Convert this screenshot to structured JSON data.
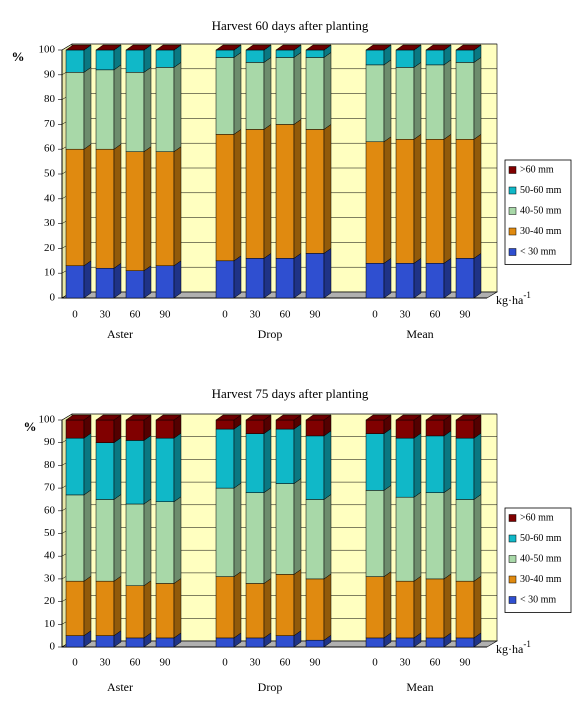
{
  "chart_data": [
    {
      "type": "bar",
      "stacked": true,
      "title": "Harvest 60 days after planting",
      "y_label": "%",
      "x_label": {
        "text": "kg·ha",
        "superscript": "-1"
      },
      "groups": [
        "Aster",
        "Drop",
        "Mean"
      ],
      "categories": [
        "0",
        "30",
        "60",
        "90",
        "0",
        "30",
        "60",
        "90",
        "0",
        "30",
        "60",
        "90"
      ],
      "ylim": [
        0,
        100
      ],
      "yticks": [
        0,
        10,
        20,
        30,
        40,
        50,
        60,
        70,
        80,
        90,
        100
      ],
      "grid": true,
      "legend": "right",
      "series": [
        {
          "name": "< 30 mm",
          "color": "#2f4fd0",
          "values": [
            13,
            12,
            11,
            13,
            15,
            16,
            16,
            18,
            14,
            14,
            14,
            16
          ]
        },
        {
          "name": "30-40 mm",
          "color": "#e08a10",
          "values": [
            47,
            48,
            48,
            46,
            51,
            52,
            54,
            50,
            49,
            50,
            50,
            48
          ]
        },
        {
          "name": "40-50 mm",
          "color": "#a8d8a8",
          "values": [
            31,
            32,
            32,
            34,
            31,
            27,
            27,
            29,
            31,
            29,
            30,
            31
          ]
        },
        {
          "name": "50-60 mm",
          "color": "#10b8c8",
          "values": [
            9,
            8,
            9,
            7,
            3,
            5,
            3,
            3,
            6,
            7,
            6,
            5
          ]
        },
        {
          "name": ">60 mm",
          "color": "#800000",
          "values": [
            0,
            0,
            0,
            0,
            0,
            0,
            0,
            0,
            0,
            0,
            0,
            0
          ]
        }
      ]
    },
    {
      "type": "bar",
      "stacked": true,
      "title": "Harvest 75 days after planting",
      "y_label": "%",
      "x_label": {
        "text": "kg·ha",
        "superscript": "-1"
      },
      "groups": [
        "Aster",
        "Drop",
        "Mean"
      ],
      "categories": [
        "0",
        "30",
        "60",
        "90",
        "0",
        "30",
        "60",
        "90",
        "0",
        "30",
        "60",
        "90"
      ],
      "ylim": [
        0,
        100
      ],
      "yticks": [
        0,
        10,
        20,
        30,
        40,
        50,
        60,
        70,
        80,
        90,
        100
      ],
      "grid": true,
      "legend": "right",
      "series": [
        {
          "name": "< 30 mm",
          "color": "#2f4fd0",
          "values": [
            5,
            5,
            4,
            4,
            4,
            4,
            5,
            3,
            4,
            4,
            4,
            4
          ]
        },
        {
          "name": "30-40 mm",
          "color": "#e08a10",
          "values": [
            24,
            24,
            23,
            24,
            27,
            24,
            27,
            27,
            27,
            25,
            26,
            25
          ]
        },
        {
          "name": "40-50 mm",
          "color": "#a8d8a8",
          "values": [
            38,
            36,
            36,
            36,
            39,
            40,
            40,
            35,
            38,
            37,
            38,
            36
          ]
        },
        {
          "name": "50-60 mm",
          "color": "#10b8c8",
          "values": [
            25,
            25,
            28,
            28,
            26,
            26,
            24,
            28,
            25,
            26,
            25,
            27
          ]
        },
        {
          "name": ">60 mm",
          "color": "#800000",
          "values": [
            8,
            10,
            9,
            8,
            4,
            6,
            4,
            7,
            6,
            8,
            7,
            8
          ]
        }
      ]
    }
  ]
}
